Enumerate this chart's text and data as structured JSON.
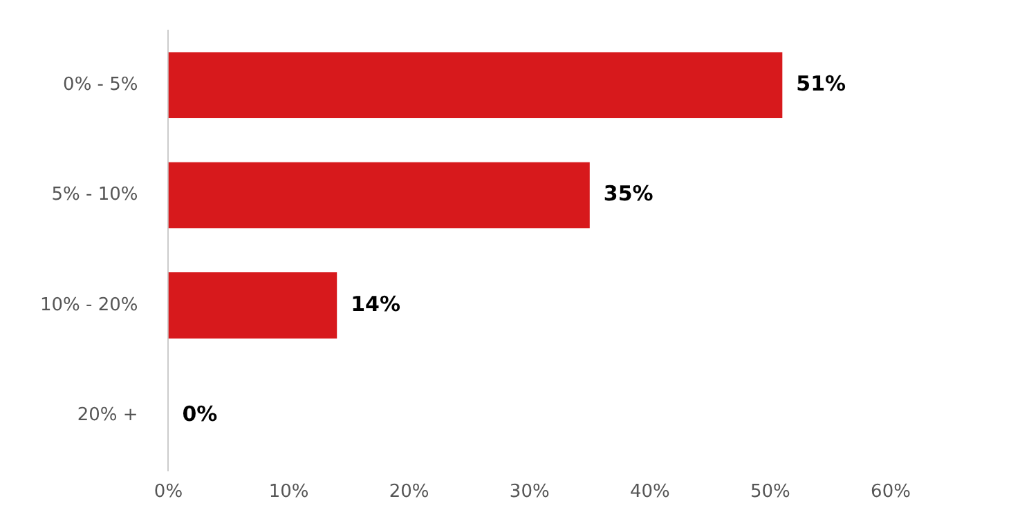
{
  "chart_data": {
    "type": "bar",
    "orientation": "horizontal",
    "categories": [
      "0% - 5%",
      "5% - 10%",
      "10% - 20%",
      "20% +"
    ],
    "values": [
      51,
      35,
      14,
      0
    ],
    "value_labels": [
      "51%",
      "35%",
      "14%",
      "0%"
    ],
    "color": "#d7191c",
    "xlim": [
      0,
      60
    ],
    "xticks": [
      {
        "value": 0,
        "label": "0%"
      },
      {
        "value": 10,
        "label": "10%"
      },
      {
        "value": 20,
        "label": "20%"
      },
      {
        "value": 30,
        "label": "30%"
      },
      {
        "value": 40,
        "label": "40%"
      },
      {
        "value": 50,
        "label": "50%"
      },
      {
        "value": 60,
        "label": "60%"
      }
    ],
    "grid": false,
    "legend": false
  }
}
